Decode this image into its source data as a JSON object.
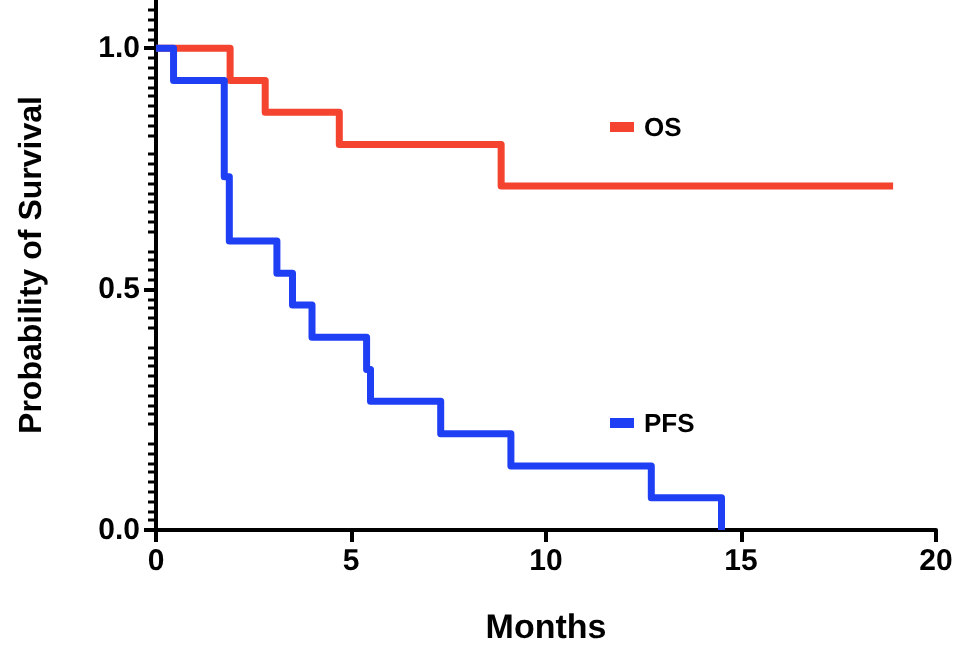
{
  "chart_data": {
    "type": "step",
    "xlabel": "Months",
    "ylabel": "Probability of Survival",
    "xlim": [
      0,
      20
    ],
    "xticks": [
      0,
      5,
      10,
      15,
      20
    ],
    "ylim": [
      0,
      1.1
    ],
    "yticks": [
      {
        "value": 0,
        "label": "0.0"
      },
      {
        "value": 0.5,
        "label": "0.5"
      },
      {
        "value": 1,
        "label": "1.0"
      }
    ],
    "grid": false,
    "legend": "right",
    "marker": "none",
    "line_style": "solid",
    "series": [
      {
        "name": "OS",
        "color": "#f4432f",
        "x": [
          0,
          1.9,
          2.8,
          4.7,
          8.85,
          18.9
        ],
        "values": [
          1,
          0.933,
          0.867,
          0.8,
          0.714,
          0.714
        ]
      },
      {
        "name": "PFS",
        "color": "#1f3ff5",
        "x": [
          0,
          0.45,
          1.75,
          1.88,
          3.1,
          3.5,
          4.0,
          5.4,
          5.5,
          7.3,
          9.1,
          12.7,
          14.5
        ],
        "values": [
          1,
          0.933,
          0.733,
          0.6,
          0.533,
          0.467,
          0.4,
          0.333,
          0.267,
          0.2,
          0.133,
          0.067,
          0
        ]
      }
    ]
  }
}
